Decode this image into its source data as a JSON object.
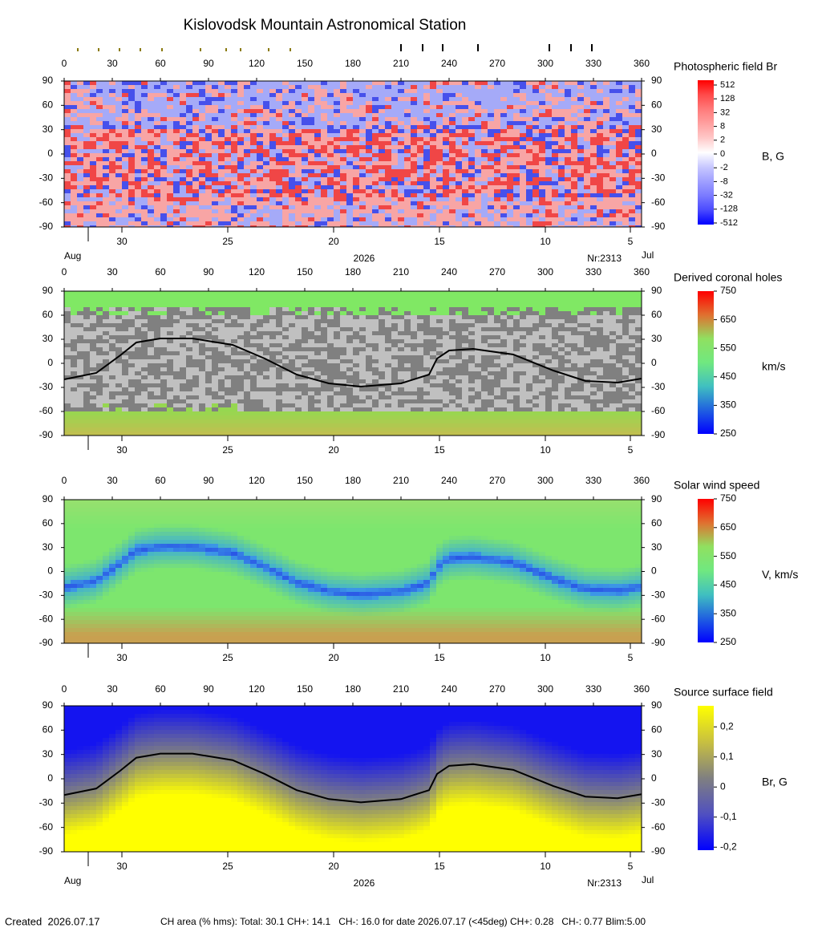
{
  "title": "Kislovodsk Mountain Astronomical Station",
  "chart_data": [
    {
      "type": "heatmap",
      "field": "photospheric",
      "colorbar_title": "Photospheric field Br",
      "colorbar_unit": "B, G",
      "colorbar_scale": "symlog",
      "clim": [
        -512,
        512
      ],
      "colorbar_ticks": [
        512,
        128,
        32,
        8,
        2,
        0,
        -2,
        -8,
        -32,
        -128,
        -512
      ],
      "xlim": [
        0,
        360
      ],
      "xticks": [
        0,
        30,
        60,
        90,
        120,
        150,
        180,
        210,
        240,
        270,
        300,
        330,
        360
      ],
      "ylim": [
        -90,
        90
      ],
      "yticks": [
        90,
        60,
        30,
        0,
        -30,
        -60,
        -90
      ],
      "date_ticks": [
        {
          "value": 36,
          "label": "30"
        },
        {
          "value": 102,
          "label": "25"
        },
        {
          "value": 168,
          "label": "20"
        },
        {
          "value": 234,
          "label": "15"
        },
        {
          "value": 300,
          "label": "10"
        },
        {
          "value": 353,
          "label": "5"
        }
      ],
      "date_labels": {
        "start_month": "Aug",
        "year": "2026",
        "rotation": "Nr:2313",
        "end_month": "Jul"
      }
    },
    {
      "type": "heatmap",
      "field": "coronal-holes",
      "colorbar_title": "Derived coronal holes",
      "colorbar_unit": "km/s",
      "colorbar_scale": "linear",
      "clim": [
        250,
        750
      ],
      "colorbar_ticks": [
        750,
        650,
        550,
        450,
        350,
        250
      ],
      "xlim": [
        0,
        360
      ],
      "xticks": [
        0,
        30,
        60,
        90,
        120,
        150,
        180,
        210,
        240,
        270,
        300,
        330,
        360
      ],
      "ylim": [
        -90,
        90
      ],
      "yticks": [
        90,
        60,
        30,
        0,
        -30,
        -60,
        -90
      ],
      "date_ticks": [
        {
          "value": 36,
          "label": "30"
        },
        {
          "value": 102,
          "label": "25"
        },
        {
          "value": 168,
          "label": "20"
        },
        {
          "value": 234,
          "label": "15"
        },
        {
          "value": 300,
          "label": "10"
        },
        {
          "value": 353,
          "label": "5"
        }
      ],
      "line": {
        "color": "#000000",
        "x": [
          0,
          20,
          35,
          45,
          60,
          80,
          105,
          125,
          145,
          165,
          185,
          210,
          227.5,
          232.5,
          240,
          255,
          280,
          305,
          325,
          345,
          360
        ],
        "values": [
          -20,
          -12,
          10,
          26,
          31,
          31,
          23,
          6,
          -14,
          -25,
          -29,
          -25,
          -14,
          6,
          16,
          18,
          11,
          -9,
          -22,
          -24,
          -19
        ]
      }
    },
    {
      "type": "heatmap",
      "field": "wind-speed",
      "colorbar_title": "Solar wind speed",
      "colorbar_unit": "V, km/s",
      "colorbar_scale": "linear",
      "clim": [
        250,
        750
      ],
      "colorbar_ticks": [
        750,
        650,
        550,
        450,
        350,
        250
      ],
      "xlim": [
        0,
        360
      ],
      "xticks": [
        0,
        30,
        60,
        90,
        120,
        150,
        180,
        210,
        240,
        270,
        300,
        330,
        360
      ],
      "ylim": [
        -90,
        90
      ],
      "yticks": [
        90,
        60,
        30,
        0,
        -30,
        -60,
        -90
      ],
      "date_ticks": [
        {
          "value": 36,
          "label": "30"
        },
        {
          "value": 102,
          "label": "25"
        },
        {
          "value": 168,
          "label": "20"
        },
        {
          "value": 234,
          "label": "15"
        },
        {
          "value": 300,
          "label": "10"
        },
        {
          "value": 353,
          "label": "5"
        }
      ]
    },
    {
      "type": "heatmap",
      "field": "source-surface",
      "colorbar_title": "Source surface field",
      "colorbar_unit": "Br, G",
      "colorbar_scale": "linear",
      "clim": [
        -0.21,
        0.27
      ],
      "colorbar_ticks": [
        {
          "value": 0.2,
          "label": "0,2"
        },
        {
          "value": 0.1,
          "label": "0,1"
        },
        0,
        {
          "value": -0.1,
          "label": "-0,1"
        },
        {
          "value": -0.2,
          "label": "-0,2"
        }
      ],
      "xlim": [
        0,
        360
      ],
      "xticks": [
        0,
        30,
        60,
        90,
        120,
        150,
        180,
        210,
        240,
        270,
        300,
        330,
        360
      ],
      "ylim": [
        -90,
        90
      ],
      "yticks": [
        90,
        60,
        30,
        0,
        -30,
        -60,
        -90
      ],
      "date_ticks": [
        {
          "value": 36,
          "label": "30"
        },
        {
          "value": 102,
          "label": "25"
        },
        {
          "value": 168,
          "label": "20"
        },
        {
          "value": 234,
          "label": "15"
        },
        {
          "value": 300,
          "label": "10"
        },
        {
          "value": 353,
          "label": "5"
        }
      ],
      "date_labels": {
        "start_month": "Aug",
        "year": "2026",
        "rotation": "Nr:2313",
        "end_month": "Jul"
      },
      "line": {
        "color": "#000000",
        "x": [
          0,
          20,
          35,
          45,
          60,
          80,
          105,
          125,
          145,
          165,
          185,
          210,
          227.5,
          232.5,
          240,
          255,
          280,
          305,
          325,
          345,
          360
        ],
        "values": [
          -20,
          -12,
          10,
          26,
          31,
          31,
          23,
          6,
          -14,
          -25,
          -29,
          -25,
          -14,
          6,
          16,
          18,
          11,
          -9,
          -22,
          -24,
          -19
        ]
      }
    }
  ],
  "footer": {
    "created": "Created  2026.07.17",
    "stats": "CH area (% hms): Total: 30.1 CH+: 14.1   CH-: 16.0 for date 2026.07.17 (<45deg) CH+: 0.28   CH-: 0.77 Blim:5.00"
  }
}
